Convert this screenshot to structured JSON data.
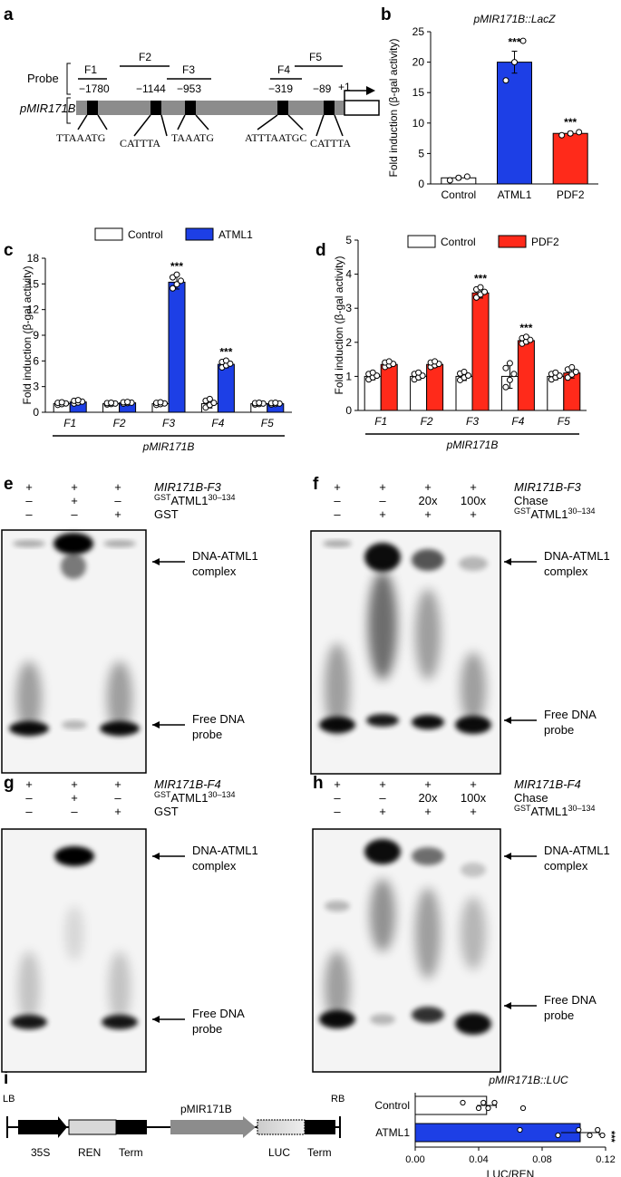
{
  "panel_labels": [
    "a",
    "b",
    "c",
    "d",
    "e",
    "f",
    "g",
    "h",
    "i"
  ],
  "panel_a": {
    "probe_label": "Probe",
    "gene_label": "pMIR171B",
    "fragments": [
      "F1",
      "F2",
      "F3",
      "F4",
      "F5"
    ],
    "positions": [
      "−1780",
      "−1144",
      "−953",
      "−319",
      "−89"
    ],
    "tss": "+1",
    "motifs": [
      "TTAAATG",
      "CATTTA",
      "TAAATG",
      "ATTTAATGC",
      "CATTTA"
    ]
  },
  "chart_data": [
    {
      "panel": "b",
      "type": "bar",
      "title": "pMIR171B::LacZ",
      "ylabel": "Fold induction (β-gal activity)",
      "xlabel": "",
      "categories": [
        "Control",
        "ATML1",
        "PDF2"
      ],
      "values": [
        1,
        20,
        8.3
      ],
      "errors": [
        0.3,
        1.8,
        0.3
      ],
      "points": [
        [
          0.6,
          1.0,
          1.2
        ],
        [
          17,
          20,
          23.5
        ],
        [
          8.0,
          8.3,
          8.5
        ]
      ],
      "significance": [
        "",
        "***",
        "***"
      ],
      "colors": [
        "#ffffff",
        "#1d3fe6",
        "#ff2a1a"
      ],
      "ylim": [
        0,
        25
      ],
      "yticks": [
        0,
        5,
        10,
        15,
        20,
        25
      ]
    },
    {
      "panel": "c",
      "type": "bar",
      "ylabel": "Fold induction (β-gal activity)",
      "xlabel": "pMIR171B",
      "categories": [
        "F1",
        "F2",
        "F3",
        "F4",
        "F5"
      ],
      "series": [
        {
          "name": "Control",
          "color": "#ffffff",
          "values": [
            1,
            1,
            1,
            1,
            1
          ],
          "errors": [
            0.15,
            0.1,
            0.15,
            0.5,
            0.1
          ]
        },
        {
          "name": "ATML1",
          "color": "#1d3fe6",
          "values": [
            1.2,
            1.1,
            15.2,
            5.6,
            1.0
          ],
          "errors": [
            0.2,
            0.1,
            0.8,
            0.4,
            0.1
          ]
        }
      ],
      "significance": [
        "",
        "",
        "***",
        "***",
        ""
      ],
      "legend": "top",
      "ylim": [
        0,
        18
      ],
      "yticks": [
        0,
        3,
        6,
        9,
        12,
        15,
        18
      ]
    },
    {
      "panel": "d",
      "type": "bar",
      "ylabel": "Fold induction (β-gal activity)",
      "xlabel": "pMIR171B",
      "categories": [
        "F1",
        "F2",
        "F3",
        "F4",
        "F5"
      ],
      "series": [
        {
          "name": "Control",
          "color": "#ffffff",
          "values": [
            1,
            1,
            1,
            1,
            1
          ],
          "errors": [
            0.1,
            0.1,
            0.12,
            0.35,
            0.1
          ]
        },
        {
          "name": "PDF2",
          "color": "#ff2a1a",
          "values": [
            1.35,
            1.35,
            3.45,
            2.05,
            1.1
          ],
          "errors": [
            0.08,
            0.08,
            0.15,
            0.1,
            0.15
          ]
        }
      ],
      "significance": [
        "",
        "",
        "***",
        "***",
        ""
      ],
      "legend": "top",
      "ylim": [
        0,
        5
      ],
      "yticks": [
        0,
        1,
        2,
        3,
        4,
        5
      ]
    },
    {
      "panel": "i",
      "type": "bar",
      "orientation": "horizontal",
      "title": "pMIR171B::LUC",
      "xlabel": "LUC/REN",
      "categories": [
        "Control",
        "ATML1"
      ],
      "values": [
        0.045,
        0.104
      ],
      "errors": [
        0.006,
        0.012
      ],
      "points": [
        [
          0.03,
          0.04,
          0.043,
          0.046,
          0.05,
          0.068
        ],
        [
          0.066,
          0.09,
          0.103,
          0.11,
          0.115,
          0.118
        ]
      ],
      "significance": [
        "",
        "***"
      ],
      "colors": [
        "#ffffff",
        "#1d3fe6"
      ],
      "xlim": [
        0,
        0.12
      ],
      "xticks": [
        "0.00",
        "0.04",
        "0.08",
        "0.12"
      ]
    }
  ],
  "emsa_e": {
    "rows": [
      {
        "label": "MIR171B-F3",
        "italic": true,
        "signs": [
          "+",
          "+",
          "+"
        ]
      },
      {
        "label": "ATML1",
        "sup_left": "GST",
        "sup_right": "30–134",
        "signs": [
          "–",
          "+",
          "–"
        ]
      },
      {
        "label": "GST",
        "signs": [
          "–",
          "–",
          "+"
        ]
      }
    ],
    "complex_label": [
      "DNA-ATML1",
      "complex"
    ],
    "free_label": [
      "Free DNA",
      "probe"
    ]
  },
  "emsa_f": {
    "rows": [
      {
        "label": "MIR171B-F3",
        "italic": true,
        "signs": [
          "+",
          "+",
          "+",
          "+"
        ]
      },
      {
        "label": "Chase",
        "signs": [
          "–",
          "–",
          "20x",
          "100x"
        ]
      },
      {
        "label": "ATML1",
        "sup_left": "GST",
        "sup_right": "30–134",
        "signs": [
          "–",
          "+",
          "+",
          "+"
        ]
      }
    ],
    "complex_label": [
      "DNA-ATML1",
      "complex"
    ],
    "free_label": [
      "Free DNA",
      "probe"
    ]
  },
  "emsa_g": {
    "rows": [
      {
        "label": "MIR171B-F4",
        "italic": true,
        "signs": [
          "+",
          "+",
          "+"
        ]
      },
      {
        "label": "ATML1",
        "sup_left": "GST",
        "sup_right": "30–134",
        "signs": [
          "–",
          "+",
          "–"
        ]
      },
      {
        "label": "GST",
        "signs": [
          "–",
          "–",
          "+"
        ]
      }
    ],
    "complex_label": [
      "DNA-ATML1",
      "complex"
    ],
    "free_label": [
      "Free DNA",
      "probe"
    ]
  },
  "emsa_h": {
    "rows": [
      {
        "label": "MIR171B-F4",
        "italic": true,
        "signs": [
          "+",
          "+",
          "+",
          "+"
        ]
      },
      {
        "label": "Chase",
        "signs": [
          "–",
          "–",
          "20x",
          "100x"
        ]
      },
      {
        "label": "ATML1",
        "sup_left": "GST",
        "sup_right": "30–134",
        "signs": [
          "–",
          "+",
          "+",
          "+"
        ]
      }
    ],
    "complex_label": [
      "DNA-ATML1",
      "complex"
    ],
    "free_label": [
      "Free DNA",
      "probe"
    ]
  },
  "construct_i": {
    "LB": "LB",
    "RB": "RB",
    "parts": [
      "35S",
      "REN",
      "Term",
      "pMIR171B",
      "LUC",
      "Term"
    ]
  }
}
